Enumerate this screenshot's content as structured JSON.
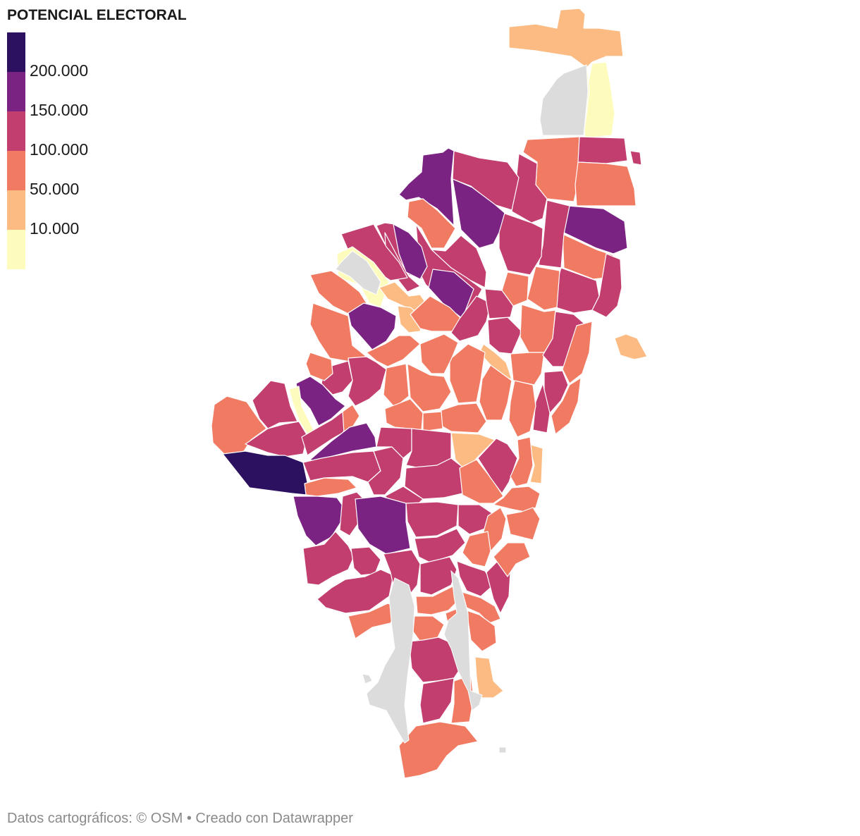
{
  "legend": {
    "title": "POTENCIAL ELECTORAL",
    "ticks": [
      "200.000",
      "150.000",
      "100.000",
      "50.000",
      "10.000"
    ],
    "colors": [
      "#2c1160",
      "#7b2382",
      "#c13e6f",
      "#f17a63",
      "#fbbb83",
      "#fdfcbc"
    ]
  },
  "map": {
    "no_data_color": "#dcdcdc",
    "border_color": "#ffffff"
  },
  "footer": {
    "source": "Datos cartográficos: © OSM",
    "separator": " • ",
    "credit": "Creado con Datawrapper"
  }
}
